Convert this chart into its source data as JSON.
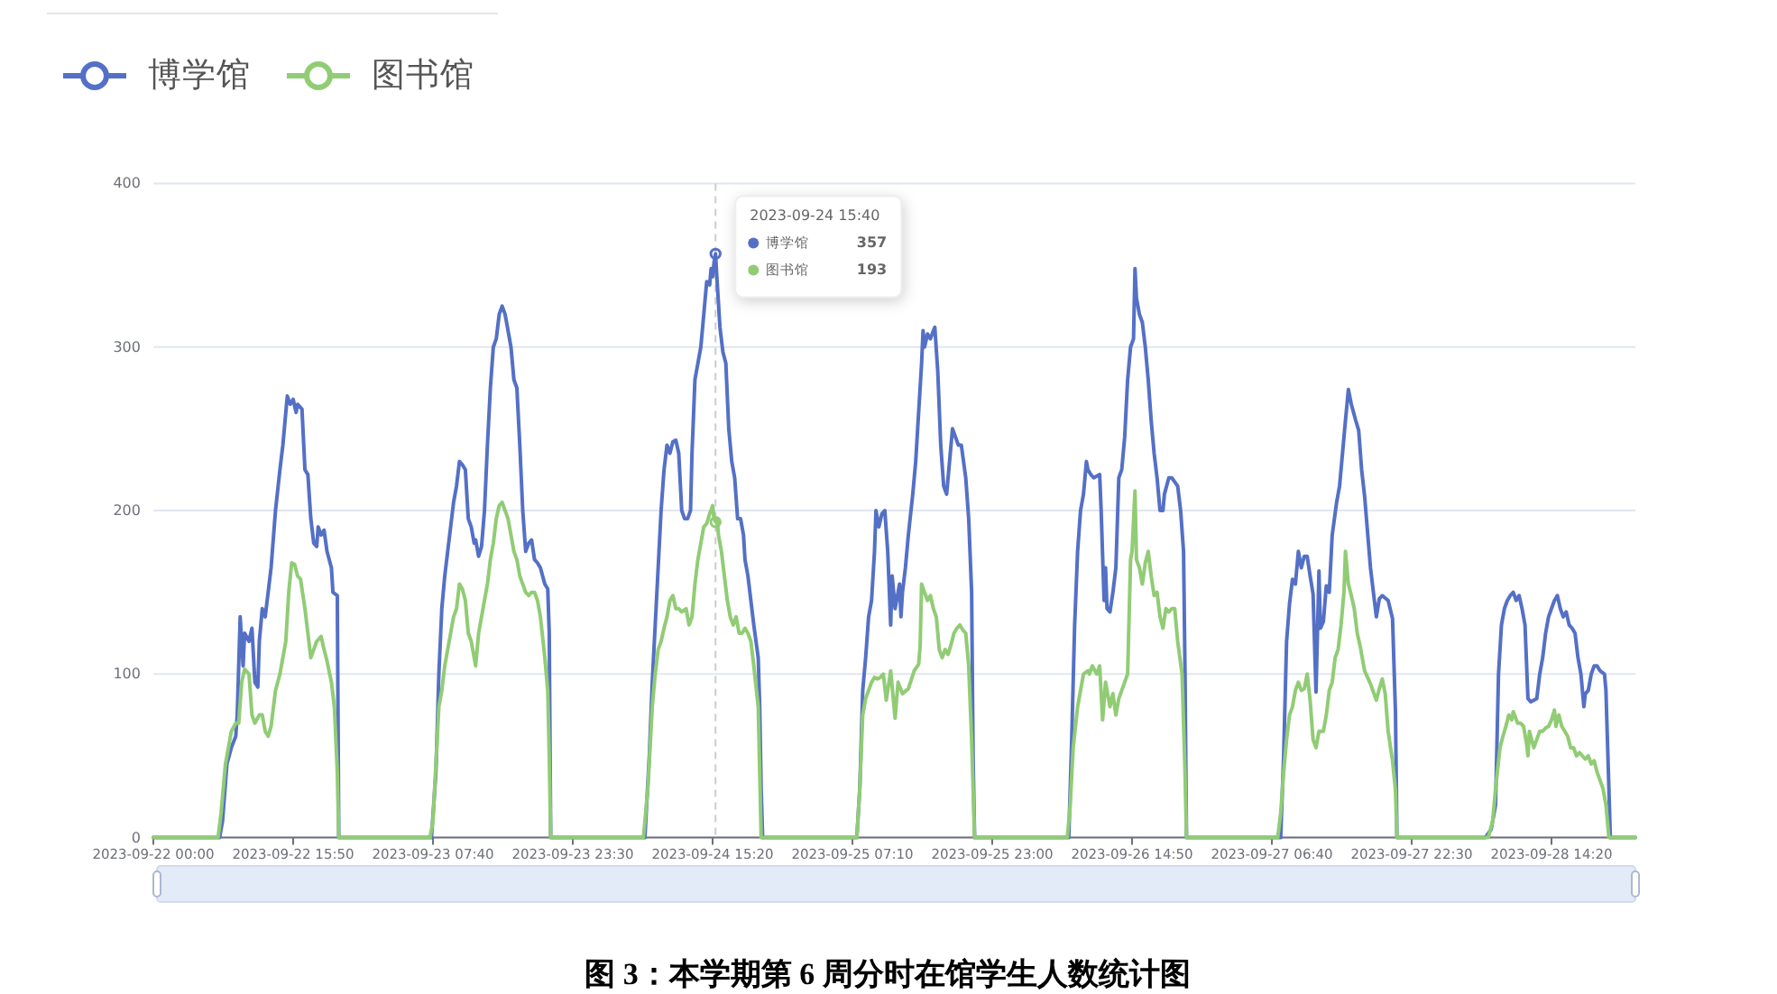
{
  "chart_data": {
    "type": "line",
    "title": "图 3：本学期第 6 周分时在馆学生人数统计图",
    "xlim": [
      "2023-09-22T00:00",
      "2023-09-28T23:50"
    ],
    "xticks": [
      {
        "value": "2023-09-22T00:00",
        "label": "2023-09-22 00:00"
      },
      {
        "value": "2023-09-22T15:50",
        "label": "2023-09-22 15:50"
      },
      {
        "value": "2023-09-23T07:40",
        "label": "2023-09-23 07:40"
      },
      {
        "value": "2023-09-23T23:30",
        "label": "2023-09-23 23:30"
      },
      {
        "value": "2023-09-24T15:20",
        "label": "2023-09-24 15:20"
      },
      {
        "value": "2023-09-25T07:10",
        "label": "2023-09-25 07:10"
      },
      {
        "value": "2023-09-25T23:00",
        "label": "2023-09-25 23:00"
      },
      {
        "value": "2023-09-26T14:50",
        "label": "2023-09-26 14:50"
      },
      {
        "value": "2023-09-27T06:40",
        "label": "2023-09-27 06:40"
      },
      {
        "value": "2023-09-27T22:30",
        "label": "2023-09-27 22:30"
      },
      {
        "value": "2023-09-28T14:20",
        "label": "2023-09-28 14:20"
      }
    ],
    "ylim": [
      0,
      400
    ],
    "yticks": [
      0,
      100,
      200,
      300,
      400
    ],
    "grid": "y",
    "legend": "top left",
    "series": [
      {
        "name": "博学馆",
        "color": "#5470c6",
        "x": [
          "2023-09-22T00:00",
          "2023-09-22T07:30",
          "2023-09-22T07:50",
          "2023-09-22T08:20",
          "2023-09-22T08:50",
          "2023-09-22T09:20",
          "2023-09-22T09:30",
          "2023-09-22T09:50",
          "2023-09-22T10:10",
          "2023-09-22T10:20",
          "2023-09-22T10:50",
          "2023-09-22T11:10",
          "2023-09-22T11:30",
          "2023-09-22T11:50",
          "2023-09-22T12:00",
          "2023-09-22T12:20",
          "2023-09-22T12:40",
          "2023-09-22T13:00",
          "2023-09-22T13:20",
          "2023-09-22T13:50",
          "2023-09-22T14:20",
          "2023-09-22T14:40",
          "2023-09-22T15:10",
          "2023-09-22T15:30",
          "2023-09-22T15:50",
          "2023-09-22T16:10",
          "2023-09-22T16:20",
          "2023-09-22T16:50",
          "2023-09-22T17:10",
          "2023-09-22T17:30",
          "2023-09-22T17:50",
          "2023-09-22T18:10",
          "2023-09-22T18:30",
          "2023-09-22T18:40",
          "2023-09-22T19:00",
          "2023-09-22T19:20",
          "2023-09-22T19:40",
          "2023-09-22T20:10",
          "2023-09-22T20:20",
          "2023-09-22T20:50",
          "2023-09-22T21:00",
          "2023-09-23T07:30",
          "2023-09-23T08:00",
          "2023-09-23T08:20",
          "2023-09-23T08:40",
          "2023-09-23T09:00",
          "2023-09-23T09:20",
          "2023-09-23T09:40",
          "2023-09-23T10:00",
          "2023-09-23T10:20",
          "2023-09-23T10:40",
          "2023-09-23T11:00",
          "2023-09-23T11:20",
          "2023-09-23T11:40",
          "2023-09-23T12:00",
          "2023-09-23T12:20",
          "2023-09-23T12:30",
          "2023-09-23T12:50",
          "2023-09-23T13:10",
          "2023-09-23T13:30",
          "2023-09-23T13:50",
          "2023-09-23T14:10",
          "2023-09-23T14:30",
          "2023-09-23T14:50",
          "2023-09-23T15:10",
          "2023-09-23T15:30",
          "2023-09-23T15:50",
          "2023-09-23T16:10",
          "2023-09-23T16:30",
          "2023-09-23T16:50",
          "2023-09-23T17:10",
          "2023-09-23T17:30",
          "2023-09-23T17:50",
          "2023-09-23T18:10",
          "2023-09-23T18:30",
          "2023-09-23T18:50",
          "2023-09-23T19:10",
          "2023-09-23T19:30",
          "2023-09-23T19:50",
          "2023-09-23T20:20",
          "2023-09-23T20:40",
          "2023-09-23T20:50",
          "2023-09-23T21:00",
          "2023-09-24T07:40",
          "2023-09-24T08:10",
          "2023-09-24T08:30",
          "2023-09-24T08:50",
          "2023-09-24T09:10",
          "2023-09-24T09:30",
          "2023-09-24T09:50",
          "2023-09-24T10:10",
          "2023-09-24T10:30",
          "2023-09-24T10:50",
          "2023-09-24T11:10",
          "2023-09-24T11:30",
          "2023-09-24T11:50",
          "2023-09-24T12:10",
          "2023-09-24T12:30",
          "2023-09-24T12:50",
          "2023-09-24T13:00",
          "2023-09-24T13:20",
          "2023-09-24T13:40",
          "2023-09-24T14:00",
          "2023-09-24T14:20",
          "2023-09-24T14:40",
          "2023-09-24T15:00",
          "2023-09-24T15:10",
          "2023-09-24T15:20",
          "2023-09-24T15:30",
          "2023-09-24T15:40",
          "2023-09-24T15:50",
          "2023-09-24T16:10",
          "2023-09-24T16:30",
          "2023-09-24T16:50",
          "2023-09-24T17:10",
          "2023-09-24T17:30",
          "2023-09-24T17:50",
          "2023-09-24T18:10",
          "2023-09-24T18:30",
          "2023-09-24T18:50",
          "2023-09-24T19:00",
          "2023-09-24T19:20",
          "2023-09-24T19:40",
          "2023-09-24T20:00",
          "2023-09-24T20:30",
          "2023-09-24T20:40",
          "2023-09-24T20:50",
          "2023-09-24T21:00",
          "2023-09-25T07:40",
          "2023-09-25T08:00",
          "2023-09-25T08:20",
          "2023-09-25T08:40",
          "2023-09-25T09:00",
          "2023-09-25T09:20",
          "2023-09-25T09:40",
          "2023-09-25T09:50",
          "2023-09-25T10:10",
          "2023-09-25T10:30",
          "2023-09-25T10:50",
          "2023-09-25T11:10",
          "2023-09-25T11:30",
          "2023-09-25T11:40",
          "2023-09-25T12:00",
          "2023-09-25T12:30",
          "2023-09-25T12:40",
          "2023-09-25T12:50",
          "2023-09-25T13:10",
          "2023-09-25T13:30",
          "2023-09-25T14:00",
          "2023-09-25T14:20",
          "2023-09-25T14:40",
          "2023-09-25T15:00",
          "2023-09-25T15:10",
          "2023-09-25T15:20",
          "2023-09-25T15:40",
          "2023-09-25T16:00",
          "2023-09-25T16:20",
          "2023-09-25T16:30",
          "2023-09-25T16:50",
          "2023-09-25T17:10",
          "2023-09-25T17:30",
          "2023-09-25T17:50",
          "2023-09-25T18:10",
          "2023-09-25T18:30",
          "2023-09-25T18:50",
          "2023-09-25T19:10",
          "2023-09-25T19:30",
          "2023-09-25T20:00",
          "2023-09-25T20:20",
          "2023-09-25T20:40",
          "2023-09-25T20:50",
          "2023-09-25T21:00",
          "2023-09-26T07:40",
          "2023-09-26T08:00",
          "2023-09-26T08:20",
          "2023-09-26T08:40",
          "2023-09-26T09:00",
          "2023-09-26T09:20",
          "2023-09-26T09:40",
          "2023-09-26T09:50",
          "2023-09-26T10:10",
          "2023-09-26T10:30",
          "2023-09-26T11:10",
          "2023-09-26T11:20",
          "2023-09-26T11:40",
          "2023-09-26T11:50",
          "2023-09-26T12:00",
          "2023-09-26T12:20",
          "2023-09-26T12:40",
          "2023-09-26T13:00",
          "2023-09-26T13:20",
          "2023-09-26T13:40",
          "2023-09-26T14:00",
          "2023-09-26T14:20",
          "2023-09-26T14:40",
          "2023-09-26T15:00",
          "2023-09-26T15:10",
          "2023-09-26T15:20",
          "2023-09-26T15:40",
          "2023-09-26T16:00",
          "2023-09-26T16:20",
          "2023-09-26T16:40",
          "2023-09-26T17:00",
          "2023-09-26T17:20",
          "2023-09-26T17:40",
          "2023-09-26T18:00",
          "2023-09-26T18:20",
          "2023-09-26T18:30",
          "2023-09-26T19:00",
          "2023-09-26T19:20",
          "2023-09-26T20:00",
          "2023-09-26T20:20",
          "2023-09-26T20:40",
          "2023-09-26T20:50",
          "2023-09-26T21:00",
          "2023-09-27T07:40",
          "2023-09-27T08:00",
          "2023-09-27T08:20",
          "2023-09-27T08:40",
          "2023-09-27T09:00",
          "2023-09-27T09:20",
          "2023-09-27T09:40",
          "2023-09-27T10:00",
          "2023-09-27T10:20",
          "2023-09-27T10:40",
          "2023-09-27T11:00",
          "2023-09-27T11:20",
          "2023-09-27T11:40",
          "2023-09-27T12:00",
          "2023-09-27T12:10",
          "2023-09-27T12:30",
          "2023-09-27T12:50",
          "2023-09-27T13:10",
          "2023-09-27T13:30",
          "2023-09-27T14:00",
          "2023-09-27T14:20",
          "2023-09-27T14:40",
          "2023-09-27T15:00",
          "2023-09-27T15:20",
          "2023-09-27T15:40",
          "2023-09-27T16:10",
          "2023-09-27T16:30",
          "2023-09-27T16:50",
          "2023-09-27T17:10",
          "2023-09-27T17:30",
          "2023-09-27T17:50",
          "2023-09-27T18:10",
          "2023-09-27T18:30",
          "2023-09-27T18:50",
          "2023-09-27T19:10",
          "2023-09-27T19:50",
          "2023-09-27T20:20",
          "2023-09-27T20:40",
          "2023-09-27T20:50",
          "2023-09-28T06:50",
          "2023-09-28T07:30",
          "2023-09-28T08:00",
          "2023-09-28T08:20",
          "2023-09-28T08:40",
          "2023-09-28T09:00",
          "2023-09-28T09:20",
          "2023-09-28T09:40",
          "2023-09-28T10:00",
          "2023-09-28T10:20",
          "2023-09-28T10:40",
          "2023-09-28T11:00",
          "2023-09-28T11:20",
          "2023-09-28T11:40",
          "2023-09-28T12:00",
          "2023-09-28T12:40",
          "2023-09-28T13:00",
          "2023-09-28T13:20",
          "2023-09-28T13:40",
          "2023-09-28T14:00",
          "2023-09-28T14:20",
          "2023-09-28T14:40",
          "2023-09-28T15:00",
          "2023-09-28T15:20",
          "2023-09-28T15:40",
          "2023-09-28T16:00",
          "2023-09-28T16:20",
          "2023-09-28T16:40",
          "2023-09-28T17:00",
          "2023-09-28T17:20",
          "2023-09-28T17:40",
          "2023-09-28T18:00",
          "2023-09-28T18:10",
          "2023-09-28T18:30",
          "2023-09-28T18:50",
          "2023-09-28T19:10",
          "2023-09-28T19:30",
          "2023-09-28T19:50",
          "2023-09-28T20:20",
          "2023-09-28T20:30",
          "2023-09-28T20:50",
          "2023-09-28T21:00",
          "2023-09-28T23:50"
        ],
        "values": [
          0,
          0,
          10,
          45,
          55,
          62,
          75,
          135,
          105,
          125,
          120,
          128,
          95,
          92,
          120,
          140,
          135,
          150,
          165,
          200,
          225,
          240,
          270,
          265,
          268,
          260,
          265,
          262,
          225,
          222,
          195,
          180,
          178,
          190,
          185,
          188,
          175,
          165,
          150,
          148,
          0,
          0,
          40,
          100,
          140,
          160,
          175,
          190,
          205,
          215,
          230,
          228,
          225,
          195,
          190,
          180,
          182,
          172,
          178,
          200,
          240,
          275,
          300,
          305,
          320,
          325,
          320,
          310,
          300,
          280,
          275,
          240,
          200,
          175,
          180,
          182,
          170,
          168,
          165,
          155,
          152,
          125,
          0,
          0,
          50,
          95,
          130,
          165,
          200,
          225,
          240,
          235,
          242,
          243,
          235,
          200,
          195,
          195,
          200,
          235,
          280,
          290,
          300,
          320,
          340,
          338,
          348,
          343,
          352,
          357,
          341,
          312,
          297,
          290,
          250,
          230,
          220,
          195,
          195,
          185,
          170,
          160,
          145,
          130,
          110,
          80,
          30,
          0,
          0,
          30,
          90,
          110,
          135,
          145,
          175,
          200,
          190,
          198,
          200,
          175,
          130,
          160,
          140,
          155,
          135,
          150,
          165,
          185,
          210,
          230,
          260,
          290,
          310,
          300,
          308,
          305,
          310,
          312,
          285,
          240,
          215,
          210,
          230,
          250,
          245,
          240,
          240,
          220,
          195,
          150,
          50,
          0,
          0,
          60,
          130,
          175,
          200,
          210,
          230,
          225,
          222,
          220,
          222,
          200,
          145,
          165,
          140,
          138,
          150,
          165,
          220,
          225,
          245,
          280,
          300,
          305,
          348,
          330,
          320,
          315,
          300,
          280,
          255,
          235,
          220,
          200,
          200,
          210,
          220,
          220,
          215,
          200,
          175,
          100,
          0,
          0,
          50,
          120,
          143,
          158,
          155,
          175,
          165,
          172,
          172,
          160,
          149,
          89,
          163,
          128,
          132,
          154,
          150,
          185,
          205,
          215,
          235,
          255,
          274,
          265,
          255,
          249,
          225,
          209,
          187,
          165,
          150,
          135,
          146,
          148,
          145,
          134,
          76,
          0,
          0,
          5,
          20,
          100,
          130,
          140,
          145,
          148,
          150,
          145,
          148,
          140,
          130,
          85,
          83,
          85,
          100,
          110,
          125,
          135,
          140,
          145,
          148,
          140,
          135,
          138,
          130,
          128,
          125,
          110,
          100,
          80,
          88,
          90,
          100,
          105,
          105,
          102,
          100,
          90,
          30,
          0,
          0
        ]
      },
      {
        "name": "图书馆",
        "color": "#91cc75",
        "x": [
          "2023-09-22T00:00",
          "2023-09-22T07:20",
          "2023-09-22T07:40",
          "2023-09-22T08:10",
          "2023-09-22T08:50",
          "2023-09-22T09:20",
          "2023-09-22T09:40",
          "2023-09-22T10:00",
          "2023-09-22T10:20",
          "2023-09-22T10:50",
          "2023-09-22T11:10",
          "2023-09-22T11:30",
          "2023-09-22T12:00",
          "2023-09-22T12:20",
          "2023-09-22T12:40",
          "2023-09-22T13:00",
          "2023-09-22T13:20",
          "2023-09-22T13:50",
          "2023-09-22T14:20",
          "2023-09-22T14:40",
          "2023-09-22T15:00",
          "2023-09-22T15:20",
          "2023-09-22T15:40",
          "2023-09-22T16:00",
          "2023-09-22T16:20",
          "2023-09-22T16:40",
          "2023-09-22T17:10",
          "2023-09-22T17:30",
          "2023-09-22T17:50",
          "2023-09-22T18:10",
          "2023-09-22T18:30",
          "2023-09-22T19:00",
          "2023-09-22T19:20",
          "2023-09-22T19:40",
          "2023-09-22T20:10",
          "2023-09-22T20:30",
          "2023-09-22T20:50",
          "2023-09-22T21:00",
          "2023-09-23T07:20",
          "2023-09-23T07:40",
          "2023-09-23T08:00",
          "2023-09-23T08:20",
          "2023-09-23T08:40",
          "2023-09-23T09:00",
          "2023-09-23T09:20",
          "2023-09-23T09:40",
          "2023-09-23T10:00",
          "2023-09-23T10:20",
          "2023-09-23T10:40",
          "2023-09-23T11:00",
          "2023-09-23T11:20",
          "2023-09-23T11:40",
          "2023-09-23T12:00",
          "2023-09-23T12:30",
          "2023-09-23T12:50",
          "2023-09-23T13:10",
          "2023-09-23T13:30",
          "2023-09-23T13:50",
          "2023-09-23T14:10",
          "2023-09-23T14:30",
          "2023-09-23T14:50",
          "2023-09-23T15:10",
          "2023-09-23T15:30",
          "2023-09-23T15:50",
          "2023-09-23T16:10",
          "2023-09-23T16:30",
          "2023-09-23T16:50",
          "2023-09-23T17:10",
          "2023-09-23T17:30",
          "2023-09-23T17:50",
          "2023-09-23T18:10",
          "2023-09-23T18:30",
          "2023-09-23T18:50",
          "2023-09-23T19:10",
          "2023-09-23T19:30",
          "2023-09-23T19:50",
          "2023-09-23T20:20",
          "2023-09-23T20:40",
          "2023-09-23T20:50",
          "2023-09-23T21:00",
          "2023-09-24T07:30",
          "2023-09-24T08:00",
          "2023-09-24T08:30",
          "2023-09-24T08:50",
          "2023-09-24T09:10",
          "2023-09-24T09:30",
          "2023-09-24T09:50",
          "2023-09-24T10:10",
          "2023-09-24T10:30",
          "2023-09-24T10:50",
          "2023-09-24T11:10",
          "2023-09-24T11:30",
          "2023-09-24T11:50",
          "2023-09-24T12:20",
          "2023-09-24T12:40",
          "2023-09-24T13:00",
          "2023-09-24T13:20",
          "2023-09-24T13:40",
          "2023-09-24T14:00",
          "2023-09-24T14:20",
          "2023-09-24T14:40",
          "2023-09-24T15:00",
          "2023-09-24T15:20",
          "2023-09-24T15:30",
          "2023-09-24T15:40",
          "2023-09-24T15:50",
          "2023-09-24T16:00",
          "2023-09-24T16:20",
          "2023-09-24T16:40",
          "2023-09-24T17:00",
          "2023-09-24T17:20",
          "2023-09-24T17:40",
          "2023-09-24T18:00",
          "2023-09-24T18:20",
          "2023-09-24T18:40",
          "2023-09-24T19:00",
          "2023-09-24T19:20",
          "2023-09-24T19:40",
          "2023-09-24T20:00",
          "2023-09-24T20:30",
          "2023-09-24T20:40",
          "2023-09-24T20:50",
          "2023-09-25T07:40",
          "2023-09-25T08:00",
          "2023-09-25T08:20",
          "2023-09-25T08:40",
          "2023-09-25T09:20",
          "2023-09-25T09:40",
          "2023-09-25T10:00",
          "2023-09-25T10:20",
          "2023-09-25T10:40",
          "2023-09-25T11:00",
          "2023-09-25T11:30",
          "2023-09-25T12:00",
          "2023-09-25T12:20",
          "2023-09-25T12:50",
          "2023-09-25T13:30",
          "2023-09-25T14:10",
          "2023-09-25T14:40",
          "2023-09-25T14:50",
          "2023-09-25T15:00",
          "2023-09-25T15:20",
          "2023-09-25T15:40",
          "2023-09-25T16:00",
          "2023-09-25T16:20",
          "2023-09-25T16:40",
          "2023-09-25T17:00",
          "2023-09-25T17:20",
          "2023-09-25T17:40",
          "2023-09-25T18:00",
          "2023-09-25T18:20",
          "2023-09-25T18:40",
          "2023-09-25T19:00",
          "2023-09-25T19:20",
          "2023-09-25T19:40",
          "2023-09-25T20:00",
          "2023-09-25T20:20",
          "2023-09-25T20:40",
          "2023-09-25T21:00",
          "2023-09-26T07:30",
          "2023-09-26T07:50",
          "2023-09-26T08:10",
          "2023-09-26T08:40",
          "2023-09-26T09:00",
          "2023-09-26T09:20",
          "2023-09-26T09:50",
          "2023-09-26T10:00",
          "2023-09-26T10:20",
          "2023-09-26T10:50",
          "2023-09-26T11:10",
          "2023-09-26T11:30",
          "2023-09-26T11:50",
          "2023-09-26T12:00",
          "2023-09-26T12:20",
          "2023-09-26T12:40",
          "2023-09-26T13:00",
          "2023-09-26T13:20",
          "2023-09-26T13:40",
          "2023-09-26T14:00",
          "2023-09-26T14:20",
          "2023-09-26T14:40",
          "2023-09-26T14:50",
          "2023-09-26T15:10",
          "2023-09-26T15:20",
          "2023-09-26T15:40",
          "2023-09-26T16:00",
          "2023-09-26T16:20",
          "2023-09-26T16:40",
          "2023-09-26T17:00",
          "2023-09-26T17:20",
          "2023-09-26T17:40",
          "2023-09-26T18:00",
          "2023-09-26T18:20",
          "2023-09-26T18:40",
          "2023-09-26T19:00",
          "2023-09-26T19:20",
          "2023-09-26T19:40",
          "2023-09-26T20:00",
          "2023-09-26T20:30",
          "2023-09-26T20:50",
          "2023-09-26T21:00",
          "2023-09-27T07:20",
          "2023-09-27T07:40",
          "2023-09-27T08:00",
          "2023-09-27T08:20",
          "2023-09-27T08:40",
          "2023-09-27T09:00",
          "2023-09-27T09:20",
          "2023-09-27T09:40",
          "2023-09-27T10:00",
          "2023-09-27T10:20",
          "2023-09-27T10:40",
          "2023-09-27T11:00",
          "2023-09-27T11:20",
          "2023-09-27T11:40",
          "2023-09-27T12:00",
          "2023-09-27T12:30",
          "2023-09-27T12:50",
          "2023-09-27T13:10",
          "2023-09-27T13:30",
          "2023-09-27T13:50",
          "2023-09-27T14:10",
          "2023-09-27T14:30",
          "2023-09-27T14:50",
          "2023-09-27T15:00",
          "2023-09-27T15:20",
          "2023-09-27T15:40",
          "2023-09-27T16:00",
          "2023-09-27T16:20",
          "2023-09-27T16:40",
          "2023-09-27T17:10",
          "2023-09-27T17:50",
          "2023-09-27T18:30",
          "2023-09-27T18:50",
          "2023-09-27T19:10",
          "2023-09-27T19:30",
          "2023-09-27T19:50",
          "2023-09-27T20:20",
          "2023-09-27T20:40",
          "2023-09-27T20:50",
          "2023-09-28T07:10",
          "2023-09-28T07:40",
          "2023-09-28T08:00",
          "2023-09-28T08:30",
          "2023-09-28T08:50",
          "2023-09-28T09:10",
          "2023-09-28T09:30",
          "2023-09-28T09:50",
          "2023-09-28T10:00",
          "2023-09-28T10:30",
          "2023-09-28T10:50",
          "2023-09-28T11:10",
          "2023-09-28T11:30",
          "2023-09-28T11:40",
          "2023-09-28T11:50",
          "2023-09-28T12:20",
          "2023-09-28T12:40",
          "2023-09-28T13:00",
          "2023-09-28T13:20",
          "2023-09-28T13:40",
          "2023-09-28T14:00",
          "2023-09-28T14:20",
          "2023-09-28T14:40",
          "2023-09-28T14:50",
          "2023-09-28T15:10",
          "2023-09-28T15:30",
          "2023-09-28T15:50",
          "2023-09-28T16:10",
          "2023-09-28T16:30",
          "2023-09-28T16:50",
          "2023-09-28T17:10",
          "2023-09-28T17:30",
          "2023-09-28T17:50",
          "2023-09-28T18:10",
          "2023-09-28T18:30",
          "2023-09-28T18:50",
          "2023-09-28T19:10",
          "2023-09-28T19:30",
          "2023-09-28T19:50",
          "2023-09-28T20:10",
          "2023-09-28T20:30",
          "2023-09-28T20:50",
          "2023-09-28T23:50"
        ],
        "values": [
          0,
          0,
          15,
          45,
          65,
          70,
          70,
          95,
          103,
          100,
          75,
          70,
          75,
          75,
          65,
          62,
          68,
          90,
          100,
          110,
          120,
          150,
          168,
          167,
          160,
          158,
          140,
          125,
          110,
          115,
          120,
          123,
          115,
          108,
          95,
          80,
          40,
          0,
          0,
          10,
          45,
          80,
          90,
          105,
          115,
          125,
          135,
          140,
          155,
          152,
          145,
          125,
          120,
          105,
          125,
          135,
          145,
          155,
          170,
          180,
          195,
          203,
          205,
          200,
          195,
          185,
          175,
          170,
          160,
          155,
          150,
          148,
          150,
          150,
          145,
          135,
          110,
          90,
          50,
          0,
          0,
          30,
          80,
          100,
          115,
          120,
          128,
          135,
          145,
          148,
          140,
          140,
          138,
          140,
          130,
          135,
          155,
          170,
          180,
          190,
          192,
          198,
          203,
          195,
          193,
          195,
          185,
          175,
          160,
          145,
          135,
          130,
          135,
          125,
          125,
          128,
          125,
          120,
          105,
          80,
          40,
          0,
          0,
          30,
          75,
          85,
          95,
          98,
          97,
          98,
          100,
          84,
          102,
          73,
          95,
          88,
          91,
          102,
          106,
          117,
          155,
          150,
          145,
          148,
          140,
          135,
          115,
          110,
          115,
          112,
          118,
          125,
          128,
          130,
          127,
          125,
          105,
          60,
          0,
          0,
          20,
          55,
          80,
          90,
          100,
          102,
          100,
          105,
          100,
          105,
          72,
          95,
          90,
          80,
          88,
          75,
          85,
          90,
          95,
          100,
          170,
          175,
          212,
          170,
          165,
          155,
          168,
          175,
          160,
          148,
          150,
          135,
          128,
          140,
          138,
          140,
          140,
          120,
          100,
          40,
          0,
          0,
          15,
          40,
          60,
          75,
          80,
          90,
          95,
          90,
          91,
          100,
          84,
          60,
          55,
          65,
          65,
          75,
          90,
          95,
          110,
          115,
          130,
          150,
          175,
          155,
          148,
          140,
          125,
          117,
          102,
          94,
          84,
          91,
          97,
          88,
          65,
          47,
          29,
          0,
          0,
          10,
          30,
          55,
          62,
          68,
          75,
          72,
          77,
          70,
          70,
          68,
          58,
          50,
          65,
          55,
          60,
          65,
          65,
          67,
          68,
          72,
          78,
          68,
          75,
          68,
          65,
          62,
          55,
          55,
          50,
          52,
          50,
          48,
          50,
          45,
          47,
          40,
          35,
          30,
          20,
          0,
          0
        ]
      }
    ],
    "ref_lines": [
      {
        "axis": "x",
        "value": "2023-09-24T15:40",
        "line_style": "dashed",
        "color": "#cccccc"
      }
    ],
    "annotations": [
      {
        "text": "2023-09-24 15:40",
        "x": "2023-09-24T15:40"
      },
      "357",
      "193"
    ]
  }
}
